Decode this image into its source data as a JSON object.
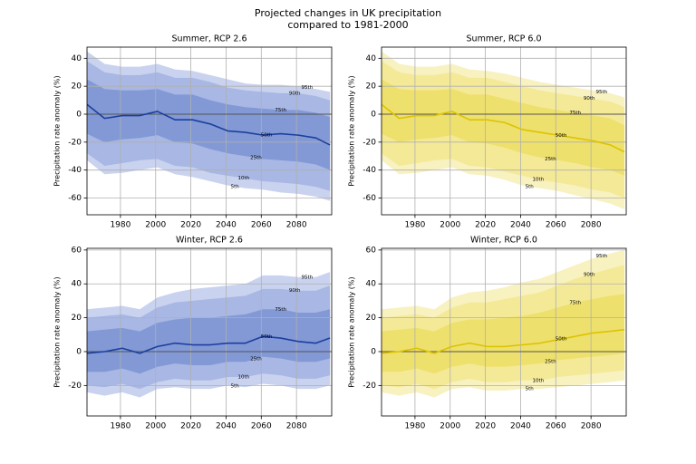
{
  "title": [
    "Projected changes in UK precipitation",
    "compared to 1981-2000"
  ],
  "chart_data": [
    {
      "type": "fan",
      "title": "Summer, RCP 2.6",
      "ylabel": "Precipitation rate anomaly (%)",
      "x": [
        1961,
        1971,
        1981,
        1991,
        2001,
        2011,
        2021,
        2031,
        2041,
        2051,
        2061,
        2071,
        2081,
        2091,
        2099
      ],
      "xlim": [
        1961,
        2100
      ],
      "xticks": [
        1980,
        2000,
        2020,
        2040,
        2060,
        2080
      ],
      "ylim": [
        -72,
        48
      ],
      "yticks": [
        -60,
        -40,
        -20,
        0,
        20,
        40
      ],
      "grid": true,
      "axhline": 0,
      "series": [
        {
          "name": "5th",
          "color": "#c9d3ef",
          "values": [
            -33,
            -43,
            -42,
            -40,
            -38,
            -43,
            -45,
            -48,
            -51,
            -53,
            -54,
            -56,
            -57,
            -59,
            -62
          ]
        },
        {
          "name": "10th",
          "color": "#a8b7e3",
          "values": [
            -28,
            -37,
            -35,
            -33,
            -32,
            -37,
            -38,
            -42,
            -44,
            -46,
            -48,
            -49,
            -50,
            -52,
            -55
          ]
        },
        {
          "name": "25th",
          "color": "#8299d6",
          "values": [
            -14,
            -20,
            -18,
            -17,
            -15,
            -20,
            -21,
            -25,
            -28,
            -30,
            -32,
            -33,
            -34,
            -36,
            -40
          ]
        },
        {
          "name": "50th",
          "color": "#1c3f9e",
          "values": [
            7,
            -3,
            -1,
            -1,
            2,
            -4,
            -4,
            -7,
            -12,
            -13,
            -15,
            -14,
            -15,
            -17,
            -22
          ]
        },
        {
          "name": "75th",
          "color": "#8299d6",
          "values": [
            25,
            18,
            17,
            17,
            18,
            14,
            14,
            10,
            7,
            5,
            4,
            3,
            3,
            1,
            -2
          ]
        },
        {
          "name": "90th",
          "color": "#a8b7e3",
          "values": [
            38,
            30,
            28,
            28,
            30,
            26,
            26,
            23,
            19,
            17,
            16,
            15,
            15,
            13,
            10
          ]
        },
        {
          "name": "95th",
          "color": "#c9d3ef",
          "values": [
            45,
            36,
            34,
            34,
            36,
            32,
            31,
            28,
            25,
            22,
            21,
            21,
            20,
            18,
            16
          ]
        }
      ]
    },
    {
      "type": "fan",
      "title": "Summer, RCP 6.0",
      "ylabel": "Precipitation rate anomaly (%)",
      "x": [
        1961,
        1971,
        1981,
        1991,
        2001,
        2011,
        2021,
        2031,
        2041,
        2051,
        2061,
        2071,
        2081,
        2091,
        2099
      ],
      "xlim": [
        1961,
        2100
      ],
      "xticks": [
        1980,
        2000,
        2020,
        2040,
        2060,
        2080
      ],
      "ylim": [
        -72,
        48
      ],
      "yticks": [
        -60,
        -40,
        -20,
        0,
        20,
        40
      ],
      "grid": true,
      "axhline": 0,
      "series": [
        {
          "name": "5th",
          "color": "#f8f1c0",
          "values": [
            -33,
            -43,
            -42,
            -40,
            -38,
            -43,
            -44,
            -47,
            -51,
            -53,
            -55,
            -58,
            -61,
            -64,
            -68
          ]
        },
        {
          "name": "10th",
          "color": "#f4e997",
          "values": [
            -28,
            -37,
            -35,
            -33,
            -32,
            -37,
            -38,
            -41,
            -44,
            -47,
            -49,
            -51,
            -54,
            -56,
            -60
          ]
        },
        {
          "name": "25th",
          "color": "#eee06c",
          "values": [
            -14,
            -20,
            -18,
            -17,
            -15,
            -20,
            -21,
            -24,
            -28,
            -31,
            -33,
            -35,
            -38,
            -40,
            -44
          ]
        },
        {
          "name": "50th",
          "color": "#dcc300",
          "values": [
            7,
            -3,
            -1,
            -1,
            2,
            -4,
            -4,
            -6,
            -11,
            -13,
            -15,
            -17,
            -19,
            -22,
            -27
          ]
        },
        {
          "name": "75th",
          "color": "#eee06c",
          "values": [
            25,
            18,
            17,
            17,
            18,
            14,
            14,
            11,
            8,
            5,
            3,
            1,
            -1,
            -3,
            -8
          ]
        },
        {
          "name": "90th",
          "color": "#f4e997",
          "values": [
            38,
            30,
            28,
            28,
            30,
            26,
            26,
            23,
            20,
            17,
            15,
            13,
            11,
            9,
            5
          ]
        },
        {
          "name": "95th",
          "color": "#f8f1c0",
          "values": [
            45,
            36,
            34,
            34,
            36,
            32,
            31,
            29,
            26,
            23,
            21,
            19,
            17,
            15,
            12
          ]
        }
      ]
    },
    {
      "type": "fan",
      "title": "Winter, RCP 2.6",
      "ylabel": "Precipitation rate anomaly (%)",
      "x": [
        1961,
        1971,
        1981,
        1991,
        2001,
        2011,
        2021,
        2031,
        2041,
        2051,
        2061,
        2071,
        2081,
        2091,
        2099
      ],
      "xlim": [
        1961,
        2100
      ],
      "xticks": [
        1980,
        2000,
        2020,
        2040,
        2060,
        2080
      ],
      "ylim": [
        -38,
        61
      ],
      "yticks": [
        -20,
        0,
        20,
        40,
        60
      ],
      "grid": true,
      "axhline": 0,
      "series": [
        {
          "name": "5th",
          "color": "#c9d3ef",
          "values": [
            -24,
            -26,
            -24,
            -27,
            -22,
            -21,
            -22,
            -22,
            -20,
            -21,
            -19,
            -20,
            -22,
            -22,
            -20
          ]
        },
        {
          "name": "10th",
          "color": "#a8b7e3",
          "values": [
            -20,
            -21,
            -19,
            -22,
            -18,
            -16,
            -17,
            -17,
            -15,
            -15,
            -13,
            -14,
            -16,
            -16,
            -14
          ]
        },
        {
          "name": "25th",
          "color": "#8299d6",
          "values": [
            -12,
            -12,
            -10,
            -13,
            -9,
            -7,
            -8,
            -8,
            -6,
            -6,
            -3,
            -4,
            -6,
            -6,
            -4
          ]
        },
        {
          "name": "50th",
          "color": "#1c3f9e",
          "values": [
            -1,
            0,
            2,
            -1,
            3,
            5,
            4,
            4,
            5,
            5,
            9,
            8,
            6,
            5,
            8
          ]
        },
        {
          "name": "75th",
          "color": "#8299d6",
          "values": [
            12,
            13,
            14,
            12,
            17,
            19,
            20,
            20,
            21,
            22,
            25,
            25,
            23,
            23,
            25
          ]
        },
        {
          "name": "90th",
          "color": "#a8b7e3",
          "values": [
            20,
            21,
            22,
            20,
            26,
            29,
            30,
            31,
            32,
            33,
            37,
            37,
            36,
            36,
            39
          ]
        },
        {
          "name": "95th",
          "color": "#c9d3ef",
          "values": [
            25,
            26,
            27,
            25,
            32,
            35,
            37,
            38,
            39,
            40,
            45,
            45,
            44,
            44,
            47
          ]
        }
      ]
    },
    {
      "type": "fan",
      "title": "Winter, RCP 6.0",
      "ylabel": "Precipitation rate anomaly (%)",
      "x": [
        1961,
        1971,
        1981,
        1991,
        2001,
        2011,
        2021,
        2031,
        2041,
        2051,
        2061,
        2071,
        2081,
        2091,
        2099
      ],
      "xlim": [
        1961,
        2100
      ],
      "xticks": [
        1980,
        2000,
        2020,
        2040,
        2060,
        2080
      ],
      "ylim": [
        -38,
        61
      ],
      "yticks": [
        -20,
        0,
        20,
        40,
        60
      ],
      "grid": true,
      "axhline": 0,
      "series": [
        {
          "name": "5th",
          "color": "#f8f1c0",
          "values": [
            -24,
            -26,
            -24,
            -27,
            -22,
            -21,
            -23,
            -23,
            -22,
            -22,
            -21,
            -20,
            -19,
            -18,
            -17
          ]
        },
        {
          "name": "10th",
          "color": "#f4e997",
          "values": [
            -20,
            -21,
            -19,
            -22,
            -18,
            -16,
            -18,
            -18,
            -17,
            -17,
            -15,
            -14,
            -13,
            -12,
            -11
          ]
        },
        {
          "name": "25th",
          "color": "#eee06c",
          "values": [
            -12,
            -12,
            -10,
            -13,
            -9,
            -7,
            -9,
            -9,
            -8,
            -7,
            -5,
            -4,
            -3,
            -2,
            -1
          ]
        },
        {
          "name": "50th",
          "color": "#dcc300",
          "values": [
            -1,
            0,
            2,
            -1,
            3,
            5,
            3,
            3,
            4,
            5,
            7,
            9,
            11,
            12,
            13
          ]
        },
        {
          "name": "75th",
          "color": "#eee06c",
          "values": [
            12,
            13,
            14,
            12,
            17,
            19,
            19,
            20,
            21,
            23,
            26,
            29,
            31,
            33,
            34
          ]
        },
        {
          "name": "90th",
          "color": "#f4e997",
          "values": [
            20,
            21,
            22,
            20,
            26,
            29,
            29,
            31,
            33,
            35,
            39,
            43,
            46,
            49,
            51
          ]
        },
        {
          "name": "95th",
          "color": "#f8f1c0",
          "values": [
            25,
            26,
            27,
            25,
            32,
            35,
            36,
            38,
            41,
            43,
            47,
            51,
            55,
            58,
            60
          ]
        }
      ]
    }
  ]
}
